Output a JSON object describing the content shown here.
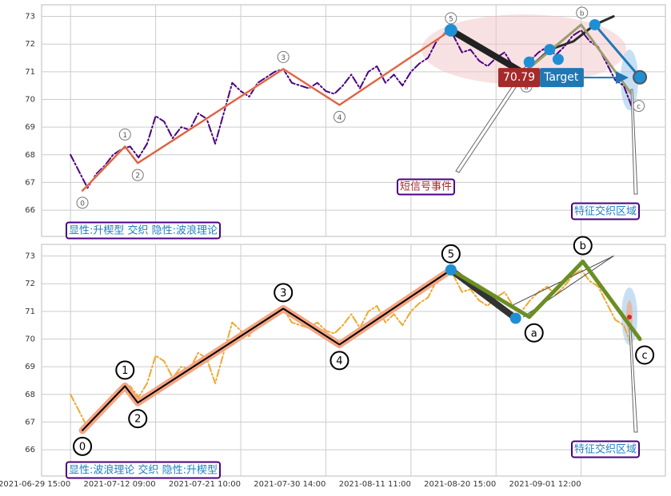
{
  "chart_data": [
    {
      "type": "line",
      "x": [
        0,
        1,
        2,
        3,
        4,
        5,
        6,
        7,
        8,
        9,
        10,
        11,
        12,
        13,
        14,
        15,
        16,
        17,
        18,
        19,
        20,
        21,
        22,
        23,
        24,
        25,
        26,
        27,
        28,
        29,
        30,
        31,
        32,
        33,
        34,
        35,
        36,
        37,
        38,
        39,
        40,
        41,
        42,
        43,
        44,
        45,
        46,
        47,
        48,
        49,
        50,
        51,
        52,
        53,
        54,
        55,
        56,
        57,
        58,
        59,
        60,
        61,
        62,
        63,
        64,
        65,
        66
      ],
      "xlim": [
        -3.4,
        69.9
      ],
      "xticks": [
        0,
        10,
        20,
        30,
        40,
        50,
        60
      ],
      "ylim": [
        65.05,
        73.42
      ],
      "yticks": [
        66,
        67,
        68,
        69,
        70,
        71,
        72,
        73
      ],
      "grid": true,
      "series": [
        {
          "color": "#4b0082",
          "values": [
            68.0,
            67.4,
            66.8,
            67.3,
            67.6,
            68.0,
            68.2,
            68.3,
            67.9,
            68.4,
            69.4,
            69.2,
            68.6,
            69.0,
            68.9,
            69.5,
            69.3,
            68.4,
            69.5,
            70.6,
            70.3,
            70.1,
            70.6,
            70.8,
            71.0,
            71.1,
            70.6,
            70.5,
            70.4,
            70.6,
            70.3,
            70.2,
            70.5,
            70.9,
            70.4,
            71.0,
            71.2,
            70.6,
            70.9,
            70.5,
            71.0,
            71.3,
            71.5,
            72.1,
            72.4,
            72.3,
            71.7,
            71.8,
            71.4,
            71.2,
            71.5,
            71.7,
            71.2,
            71.0,
            71.4,
            71.7,
            71.9,
            71.6,
            71.9,
            72.3,
            72.5,
            72.1,
            71.9,
            71.3,
            70.7,
            70.5,
            69.7
          ]
        }
      ],
      "wave": {
        "color": "#c0392b",
        "labels": [
          "0",
          "1",
          "2",
          "3",
          "4",
          "5",
          "a",
          "b",
          "c"
        ],
        "x": [
          1.4,
          6.4,
          7.9,
          25.0,
          31.6,
          44.7,
          53.0,
          60.1,
          66.2
        ],
        "values": [
          66.7,
          68.3,
          67.7,
          71.1,
          69.8,
          72.5,
          70.9,
          72.7,
          70.2
        ]
      },
      "overlays": [
        {
          "color": "#222222",
          "width": 8,
          "x": [
            44.7,
            53.0
          ],
          "values": [
            72.5,
            71.0
          ]
        },
        {
          "color": "#2a2a2a",
          "width": 3,
          "x": [
            52.6,
            54.5,
            56.3,
            59.1,
            61.6,
            63.8
          ],
          "values": [
            70.8,
            71.3,
            71.8,
            72.1,
            72.7,
            73.0
          ]
        },
        {
          "color": "#9c9c6e",
          "width": 3,
          "x": [
            53.0,
            60.0,
            65.9
          ],
          "values": [
            70.9,
            72.7,
            70.2
          ]
        },
        {
          "color": "#1f77b4",
          "width": 3,
          "x": [
            61.6,
            66.9
          ],
          "values": [
            72.7,
            70.8
          ]
        }
      ],
      "markers": {
        "color": "#1f8fd4",
        "x": [
          44.7,
          53.9,
          56.3,
          57.3,
          61.6,
          66.9
        ],
        "values": [
          72.5,
          71.35,
          71.8,
          71.45,
          72.7,
          70.8
        ]
      },
      "target_value": 70.79,
      "target_label": "Target",
      "annotations": [
        "显性:升楔型 交织 隐性:波浪理论",
        "短信号事件",
        "特征交织区域"
      ]
    },
    {
      "type": "line",
      "x": [
        0,
        1,
        2,
        3,
        4,
        5,
        6,
        7,
        8,
        9,
        10,
        11,
        12,
        13,
        14,
        15,
        16,
        17,
        18,
        19,
        20,
        21,
        22,
        23,
        24,
        25,
        26,
        27,
        28,
        29,
        30,
        31,
        32,
        33,
        34,
        35,
        36,
        37,
        38,
        39,
        40,
        41,
        42,
        43,
        44,
        45,
        46,
        47,
        48,
        49,
        50,
        51,
        52,
        53,
        54,
        55,
        56,
        57,
        58,
        59,
        60,
        61,
        62,
        63,
        64,
        65,
        66
      ],
      "xlim": [
        -3.4,
        69.9
      ],
      "xticks": [
        {
          "value": 0,
          "label": "2021-06-29 15:00"
        },
        {
          "value": 10,
          "label": "2021-07-12 09:00"
        },
        {
          "value": 20,
          "label": "2021-07-21 10:00"
        },
        {
          "value": 30,
          "label": "2021-07-30 14:00"
        },
        {
          "value": 40,
          "label": "2021-08-11 11:00"
        },
        {
          "value": 50,
          "label": "2021-08-20 15:00"
        },
        {
          "value": 60,
          "label": "2021-09-01 12:00"
        }
      ],
      "ylim": [
        65.05,
        73.42
      ],
      "yticks": [
        66,
        67,
        68,
        69,
        70,
        71,
        72,
        73
      ],
      "grid": true,
      "series": [
        {
          "color": "#f0a830",
          "values": [
            68.0,
            67.4,
            66.8,
            67.3,
            67.6,
            68.0,
            68.2,
            68.3,
            67.9,
            68.4,
            69.4,
            69.2,
            68.6,
            69.0,
            68.9,
            69.5,
            69.3,
            68.4,
            69.5,
            70.6,
            70.3,
            70.1,
            70.6,
            70.8,
            71.0,
            71.1,
            70.6,
            70.5,
            70.4,
            70.6,
            70.3,
            70.2,
            70.5,
            70.9,
            70.4,
            71.0,
            71.2,
            70.6,
            70.9,
            70.5,
            71.0,
            71.3,
            71.5,
            72.1,
            72.4,
            72.3,
            71.7,
            71.8,
            71.4,
            71.2,
            71.5,
            71.7,
            71.2,
            71.0,
            71.4,
            71.7,
            71.9,
            71.6,
            71.9,
            72.3,
            72.5,
            72.1,
            71.9,
            71.3,
            70.7,
            70.5,
            69.7
          ]
        }
      ],
      "wave": {
        "color": "#000000",
        "labels": [
          "0",
          "1",
          "2",
          "3",
          "4",
          "5",
          "a",
          "b",
          "c"
        ],
        "x": [
          1.4,
          6.4,
          7.9,
          25.0,
          31.6,
          44.7,
          53.9,
          60.2,
          66.9
        ],
        "values": [
          66.7,
          68.3,
          67.7,
          71.1,
          69.8,
          72.5,
          70.8,
          72.8,
          70.0
        ]
      },
      "overlays": [
        {
          "color": "#f4a582",
          "width": 9,
          "x": [
            1.4,
            6.4,
            7.9,
            25.0,
            31.6,
            44.7
          ],
          "values": [
            66.7,
            68.3,
            67.7,
            71.1,
            69.8,
            72.5
          ]
        },
        {
          "color": "#000000",
          "width": 2,
          "x": [
            1.4,
            6.4,
            7.9,
            25.0,
            31.6,
            44.7
          ],
          "values": [
            66.7,
            68.3,
            67.7,
            71.1,
            69.8,
            72.5
          ]
        },
        {
          "color": "#333333",
          "width": 8,
          "x": [
            44.7,
            52.3
          ],
          "values": [
            72.5,
            70.75
          ]
        },
        {
          "color": "#444444",
          "width": 1,
          "x": [
            51.8,
            63.8
          ],
          "values": [
            71.2,
            73.0
          ]
        },
        {
          "color": "#444444",
          "width": 1,
          "x": [
            53.2,
            63.8
          ],
          "values": [
            70.8,
            73.0
          ]
        },
        {
          "color": "#6b8e23",
          "width": 5,
          "x": [
            44.7,
            53.9,
            60.2,
            66.9
          ],
          "values": [
            72.5,
            70.8,
            72.8,
            70.0
          ]
        }
      ],
      "markers": {
        "color": "#1f8fd4",
        "x": [
          44.7,
          52.3
        ],
        "values": [
          72.5,
          70.75
        ]
      },
      "annotations": [
        "显性:波浪理论 交织 隐性:升楔型",
        "特征交织区域"
      ]
    }
  ]
}
